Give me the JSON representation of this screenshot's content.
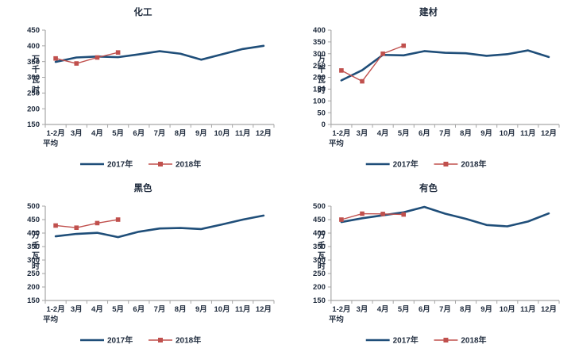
{
  "page": {
    "background": "#ffffff"
  },
  "colors": {
    "series_2017": "#1F4E79",
    "series_2018": "#C0504D",
    "axis_line": "#A6A6A6",
    "text": "#1F2B3D"
  },
  "chart_data": [
    {
      "type": "line",
      "title": "化工",
      "ylabel": "万千瓦时",
      "ylim": [
        150,
        450
      ],
      "ytick_step": 50,
      "grid": false,
      "legend_position": "bottom",
      "categories": [
        "1-2月",
        "3月",
        "4月",
        "5月",
        "6月",
        "7月",
        "8月",
        "9月",
        "10月",
        "11月",
        "12月"
      ],
      "category_subline": {
        "index": 0,
        "text": "平均"
      },
      "series": [
        {
          "name": "2017年",
          "color": "#1F4E79",
          "marker": "none",
          "values": [
            349,
            363,
            366,
            364,
            373,
            383,
            375,
            356,
            373,
            390,
            400
          ]
        },
        {
          "name": "2018年",
          "color": "#C0504D",
          "marker": "square",
          "values": [
            360,
            344,
            363,
            379
          ]
        }
      ]
    },
    {
      "type": "line",
      "title": "建材",
      "ylabel": "万千瓦时",
      "ylim": [
        0,
        400
      ],
      "ytick_step": 50,
      "grid": false,
      "legend_position": "bottom",
      "categories": [
        "1-2月",
        "3月",
        "4月",
        "5月",
        "6月",
        "7月",
        "8月",
        "9月",
        "10月",
        "11月",
        "12月"
      ],
      "category_subline": {
        "index": 0,
        "text": "平均"
      },
      "series": [
        {
          "name": "2017年",
          "color": "#1F4E79",
          "marker": "none",
          "values": [
            187,
            230,
            295,
            293,
            311,
            304,
            302,
            291,
            298,
            314,
            286
          ]
        },
        {
          "name": "2018年",
          "color": "#C0504D",
          "marker": "square",
          "values": [
            229,
            183,
            300,
            334
          ]
        }
      ]
    },
    {
      "type": "line",
      "title": "黑色",
      "ylabel": "万千瓦时",
      "ylim": [
        150,
        500
      ],
      "ytick_step": 50,
      "grid": false,
      "legend_position": "bottom",
      "categories": [
        "1-2月",
        "3月",
        "4月",
        "5月",
        "6月",
        "7月",
        "8月",
        "9月",
        "10月",
        "11月",
        "12月"
      ],
      "category_subline": {
        "index": 0,
        "text": "平均"
      },
      "series": [
        {
          "name": "2017年",
          "color": "#1F4E79",
          "marker": "none",
          "values": [
            388,
            397,
            401,
            385,
            405,
            417,
            419,
            415,
            432,
            450,
            465
          ]
        },
        {
          "name": "2018年",
          "color": "#C0504D",
          "marker": "square",
          "values": [
            428,
            420,
            437,
            450
          ]
        }
      ]
    },
    {
      "type": "line",
      "title": "有色",
      "ylabel": "万千瓦时",
      "ylim": [
        150,
        500
      ],
      "ytick_step": 50,
      "grid": false,
      "legend_position": "bottom",
      "categories": [
        "1-2月",
        "3月",
        "4月",
        "5月",
        "6月",
        "7月",
        "8月",
        "9月",
        "10月",
        "11月",
        "12月"
      ],
      "category_subline": {
        "index": 0,
        "text": "平均"
      },
      "series": [
        {
          "name": "2017年",
          "color": "#1F4E79",
          "marker": "none",
          "values": [
            441,
            455,
            466,
            477,
            497,
            472,
            453,
            430,
            425,
            443,
            473
          ]
        },
        {
          "name": "2018年",
          "color": "#C0504D",
          "marker": "square",
          "values": [
            450,
            472,
            471,
            469
          ]
        }
      ]
    }
  ]
}
